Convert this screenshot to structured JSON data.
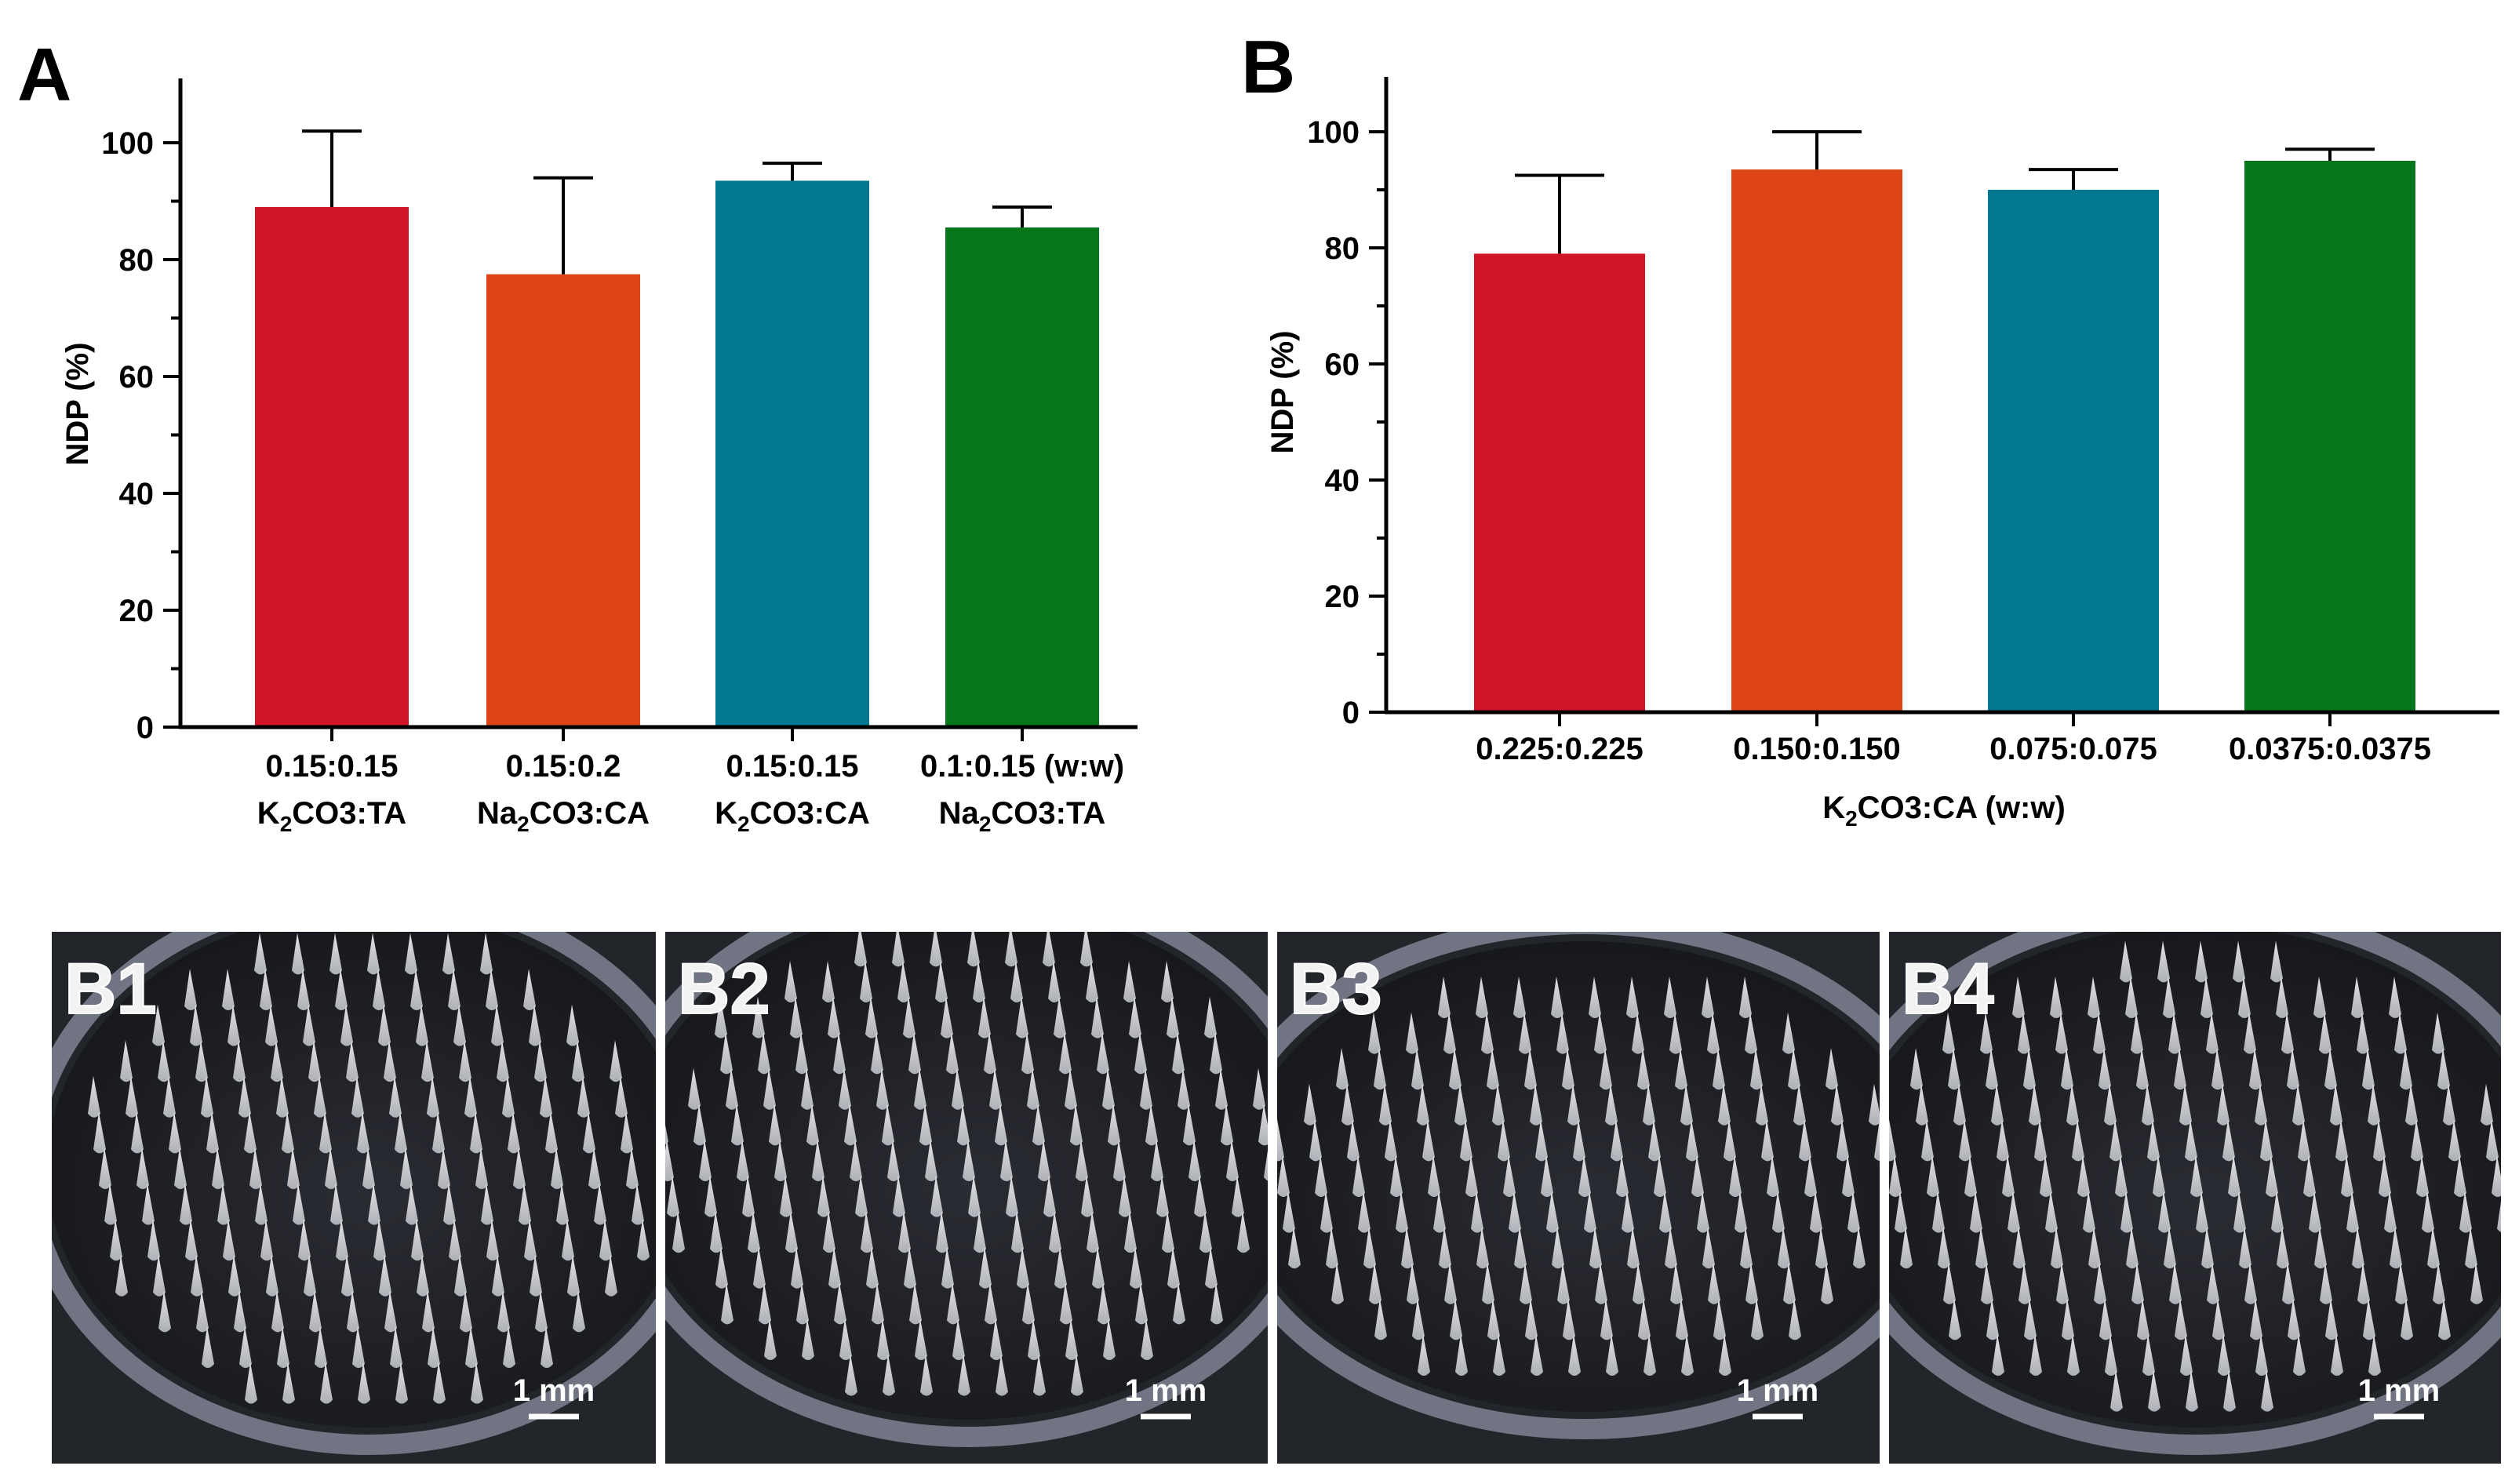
{
  "colors": {
    "red": "#d11529",
    "orange": "#dd4516",
    "teal": "#037890",
    "green": "#06761d",
    "photo_bg": "#22252a",
    "needle": "#d8d9db"
  },
  "chart_data": [
    {
      "type": "bar",
      "panel_label": "A",
      "ylabel": "NDP (%)",
      "xlabel": "",
      "ylim": [
        0,
        110
      ],
      "yticks": [
        0,
        20,
        40,
        60,
        80,
        100
      ],
      "categories": [
        {
          "line1": "0.15:0.15",
          "line2_pre": "K",
          "line2_sub": "2",
          "line2_post": "CO3:TA"
        },
        {
          "line1": "0.15:0.2",
          "line2_pre": "Na",
          "line2_sub": "2",
          "line2_post": "CO3:CA"
        },
        {
          "line1": "0.15:0.15",
          "line2_pre": "K",
          "line2_sub": "2",
          "line2_post": "CO3:CA"
        },
        {
          "line1": "0.1:0.15 (w:w)",
          "line2_pre": "Na",
          "line2_sub": "2",
          "line2_post": "CO3:TA"
        }
      ],
      "values": [
        89,
        77.5,
        93.5,
        85.5
      ],
      "errors": [
        13,
        16.5,
        3,
        3.5
      ],
      "colors": [
        "#d11529",
        "#dd4516",
        "#037890",
        "#06761d"
      ]
    },
    {
      "type": "bar",
      "panel_label": "B",
      "ylabel": "NDP (%)",
      "xlabel_pre": "K",
      "xlabel_sub": "2",
      "xlabel_post": "CO3:CA (w:w)",
      "ylim": [
        0,
        110
      ],
      "yticks": [
        0,
        20,
        40,
        60,
        80,
        100
      ],
      "categories": [
        "0.225:0.225",
        "0.150:0.150",
        "0.075:0.075",
        "0.0375:0.0375"
      ],
      "values": [
        79,
        93.5,
        90,
        95
      ],
      "errors": [
        13.5,
        6.5,
        3.5,
        2
      ],
      "colors": [
        "#d11529",
        "#dd4516",
        "#037890",
        "#06761d"
      ]
    }
  ],
  "photos": [
    {
      "label": "B1",
      "scale": "1 mm"
    },
    {
      "label": "B2",
      "scale": "1 mm"
    },
    {
      "label": "B3",
      "scale": "1 mm"
    },
    {
      "label": "B4",
      "scale": "1 mm"
    }
  ]
}
